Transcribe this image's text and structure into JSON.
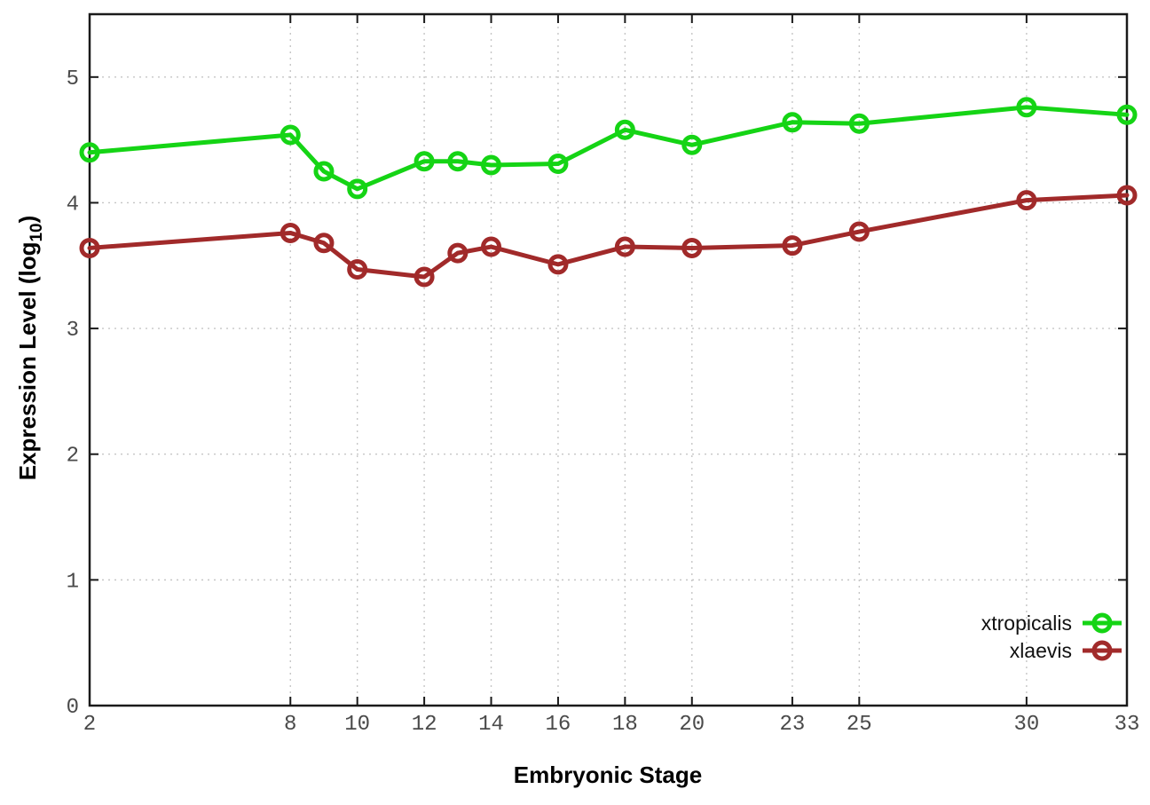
{
  "figure": {
    "background": "#ffffff",
    "border_color": "#1a1a1a",
    "grid_color": "#c6c6c6",
    "tick_label_color": "#4a4a4a",
    "axis_label_color": "#000000"
  },
  "chart_data": {
    "type": "line",
    "title": "",
    "xlabel": "Embryonic Stage",
    "ylabel": "Expression Level (log₁₀)",
    "ylabel_parts": {
      "main": "Expression Level (log",
      "sub": "10",
      "close": ")"
    },
    "x": [
      2,
      8,
      9,
      10,
      12,
      13,
      14,
      16,
      18,
      20,
      23,
      25,
      30,
      33
    ],
    "series": [
      {
        "name": "xtropicalis",
        "color": "#15d415",
        "marker": "open-circle",
        "values": [
          4.4,
          4.54,
          4.25,
          4.11,
          4.33,
          4.33,
          4.3,
          4.31,
          4.58,
          4.46,
          4.64,
          4.63,
          4.76,
          4.7
        ]
      },
      {
        "name": "xlaevis",
        "color": "#a12a2a",
        "marker": "open-circle",
        "values": [
          3.64,
          3.76,
          3.68,
          3.47,
          3.41,
          3.6,
          3.65,
          3.51,
          3.65,
          3.64,
          3.66,
          3.77,
          4.02,
          4.06
        ]
      }
    ],
    "x_ticks": [
      2,
      8,
      10,
      12,
      14,
      16,
      18,
      20,
      23,
      25,
      30,
      33
    ],
    "y_ticks": [
      0,
      1,
      2,
      3,
      4,
      5
    ],
    "xlim": [
      2,
      33
    ],
    "ylim": [
      0,
      5.5
    ],
    "grid": true,
    "legend": {
      "position": "bottom-right",
      "entries": [
        "xtropicalis",
        "xlaevis"
      ]
    }
  }
}
